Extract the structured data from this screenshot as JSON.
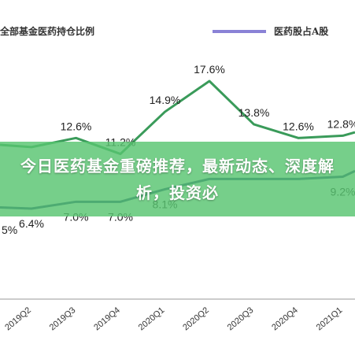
{
  "banner": {
    "headline": "今日医药基金重磅推荐，最新动态、深度解析，投资必"
  },
  "colors": {
    "fund_series": "#3a9b5a",
    "stock_series": "#1f3a7a",
    "legend_purple": "#8a82d6",
    "banner_bg": "#58c470"
  },
  "chart_data": {
    "type": "line",
    "legend": [
      {
        "label": "全部基金医药持仓比例",
        "color": "#3a9b5a"
      },
      {
        "label": "医药股占A股",
        "color": "#8a82d6"
      }
    ],
    "categories": [
      "2019Q2",
      "2019Q3",
      "2019Q4",
      "2020Q1",
      "2020Q2",
      "2020Q3",
      "2020Q4",
      "2021Q1"
    ],
    "series": [
      {
        "name": "全部基金医药持仓比例",
        "values": [
          11.8,
          12.6,
          11.2,
          14.9,
          17.6,
          13.8,
          12.6,
          12.8
        ],
        "labels": [
          "",
          "12.6%",
          "11.2%",
          "14.9%",
          "17.6%",
          "13.8%",
          "12.6%",
          "12.8%"
        ]
      },
      {
        "name": "医药股占A股",
        "values": [
          6.4,
          7.0,
          7.0,
          8.1,
          9.0,
          9.0,
          9.0,
          9.2
        ],
        "labels": [
          "6.4%",
          "7.0%",
          "7.0%",
          "8.1%",
          "",
          "",
          "",
          "9.2%"
        ]
      }
    ],
    "edge_labels": {
      "left_partial": "5%"
    },
    "grid": false
  }
}
